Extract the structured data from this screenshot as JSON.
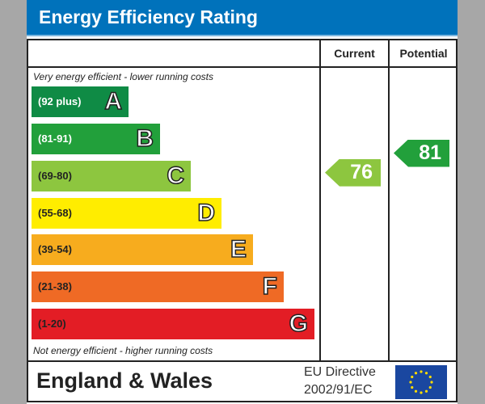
{
  "title": "Energy Efficiency Rating",
  "columns": {
    "current": "Current",
    "potential": "Potential"
  },
  "top_note": "Very energy efficient - lower running costs",
  "bottom_note": "Not energy efficient - higher running costs",
  "footer": {
    "region": "England & Wales",
    "directive_line1": "EU Directive",
    "directive_line2": "2002/91/EC",
    "flag_icon": "eu-flag-icon"
  },
  "chart_data": {
    "type": "bar",
    "title": "Energy Efficiency Rating",
    "categories": [
      "A",
      "B",
      "C",
      "D",
      "E",
      "F",
      "G"
    ],
    "bands": [
      {
        "letter": "A",
        "range": "(92 plus)",
        "color": "#0f8b45"
      },
      {
        "letter": "B",
        "range": "(81-91)",
        "color": "#22a03b"
      },
      {
        "letter": "C",
        "range": "(69-80)",
        "color": "#8dc63f"
      },
      {
        "letter": "D",
        "range": "(55-68)",
        "color": "#ffed00"
      },
      {
        "letter": "E",
        "range": "(39-54)",
        "color": "#f7ac1e"
      },
      {
        "letter": "F",
        "range": "(21-38)",
        "color": "#ef6a25"
      },
      {
        "letter": "G",
        "range": "(1-20)",
        "color": "#e31d25"
      }
    ],
    "current": {
      "value": 76,
      "band": "C",
      "color": "#8dc63f"
    },
    "potential": {
      "value": 81,
      "band": "B",
      "color": "#22a03b"
    }
  }
}
